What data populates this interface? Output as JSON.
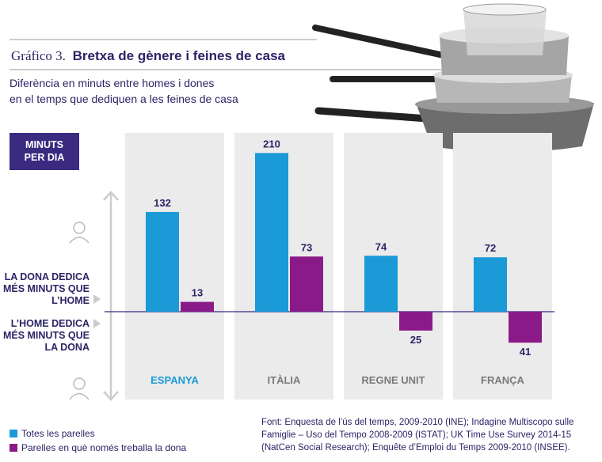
{
  "chart_data": {
    "type": "bar",
    "figure_label": "Gráfico 3.",
    "title": "Bretxa de gènere i feines de casa",
    "subtitle": [
      "Diferència en minuts entre homes i dones",
      "en el temps que dediquen a les feines de casa"
    ],
    "unit_label": [
      "MINUTS",
      "PER DIA"
    ],
    "annotations": [
      {
        "lines": [
          "LA DONA DEDICA",
          "MÉS MINUTS QUE",
          "L’HOME"
        ]
      },
      {
        "lines": [
          "L’HOME DEDICA",
          "MÉS MINUTS QUE",
          "LA DONA"
        ]
      }
    ],
    "categories": [
      "ESPANYA",
      "ITÀLIA",
      "REGNE UNIT",
      "FRANÇA"
    ],
    "category_colors": [
      "#1a9ad6",
      "#7a7a7a",
      "#7a7a7a",
      "#7a7a7a"
    ],
    "series": [
      {
        "name": "Totes les parelles",
        "color": "#1a9ad6",
        "values": [
          132,
          210,
          74,
          72
        ]
      },
      {
        "name": "Parelles en què només treballa la dona",
        "color": "#8b1a89",
        "values": [
          13,
          73,
          -25,
          -41
        ],
        "value_labels": [
          "13",
          "73",
          "25",
          "41"
        ]
      }
    ],
    "source": [
      "Font: Enquesta de l’ús del temps, 2009-2010 (INE); Indagine Multiscopo sulle",
      "Famiglie – Uso del Tempo 2008-2009 (ISTAT); UK Time Use Survey 2014-15",
      "(NatCen Social Research); Enquête d’Emploi du Temps 2009-2010 (INSEE)."
    ]
  }
}
